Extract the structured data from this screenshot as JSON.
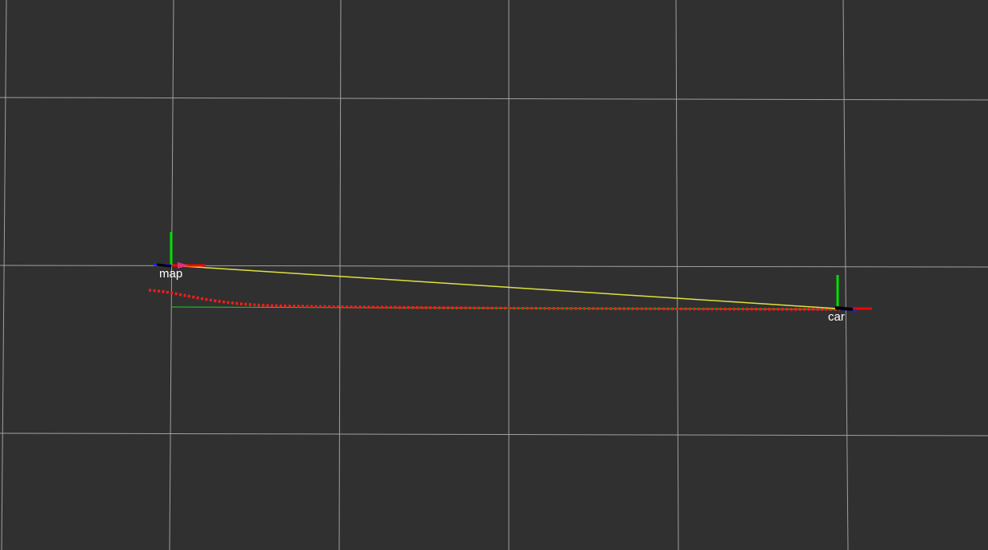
{
  "view": {
    "background_color": "#303030",
    "grid_color": "#a0a0a4"
  },
  "frames": {
    "map": {
      "label": "map"
    },
    "car": {
      "label": "car"
    }
  },
  "colors": {
    "axis_x": "#ff0000",
    "axis_y": "#00e000",
    "axis_z": "#2020ff",
    "tf_link": "#e0e040",
    "planned_path": "#ff1a1a",
    "odometry_path": "#20d020"
  }
}
